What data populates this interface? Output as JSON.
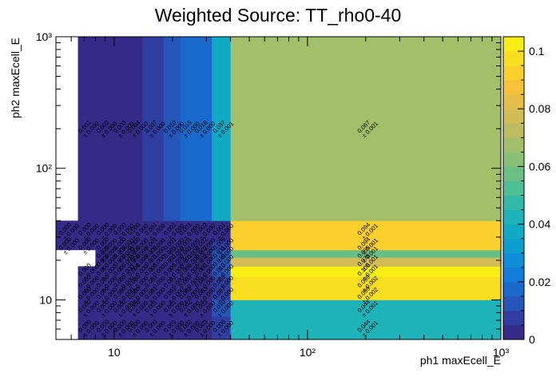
{
  "chart_data": {
    "type": "heatmap",
    "title": "Weighted Source: TT_rho0-40",
    "xlabel": "ph1 maxEcell_E",
    "ylabel": "ph2 maxEcell_E",
    "x_scale": "log",
    "y_scale": "log",
    "xlim": [
      5,
      1000
    ],
    "ylim": [
      5,
      1000
    ],
    "x_ticks": [
      {
        "value": 10,
        "label": "10"
      },
      {
        "value": 100,
        "label": "10²"
      },
      {
        "value": 1000,
        "label": "10³"
      }
    ],
    "y_ticks": [
      {
        "value": 10,
        "label": "10"
      },
      {
        "value": 100,
        "label": "10²"
      },
      {
        "value": 1000,
        "label": "10³"
      }
    ],
    "colorbar": {
      "min": 0,
      "max": 0.105,
      "ticks": [
        {
          "value": 0,
          "label": "0"
        },
        {
          "value": 0.02,
          "label": "0.02"
        },
        {
          "value": 0.04,
          "label": "0.04"
        },
        {
          "value": 0.06,
          "label": "0.06"
        },
        {
          "value": 0.08,
          "label": "0.08"
        },
        {
          "value": 0.1,
          "label": "0.1"
        }
      ]
    },
    "x_edges": [
      5,
      6.5,
      8,
      10,
      12,
      14,
      18,
      22,
      26,
      32,
      40,
      1000
    ],
    "y_edges": [
      5,
      7.5,
      10,
      12,
      15,
      18,
      21,
      24,
      28,
      40,
      1000
    ],
    "cells": [
      {
        "x": 0,
        "y": 0,
        "v": null
      },
      {
        "x": 0,
        "y": 1,
        "v": null
      },
      {
        "x": 0,
        "y": 2,
        "v": null
      },
      {
        "x": 0,
        "y": 3,
        "v": null
      },
      {
        "x": 0,
        "y": 4,
        "v": null
      },
      {
        "x": 0,
        "y": 5,
        "v": null
      },
      {
        "x": 0,
        "y": 6,
        "v": null
      },
      {
        "x": 0,
        "y": 7,
        "v": 0.0,
        "label": "0.000",
        "err": "± 0.000"
      },
      {
        "x": 0,
        "y": 8,
        "v": 0.0,
        "label": "0.000",
        "err": "± 0.000"
      },
      {
        "x": 0,
        "y": 9,
        "v": null
      },
      {
        "x": 1,
        "y": 0,
        "v": 0.0,
        "label": "0.000",
        "err": "± 0.000"
      },
      {
        "x": 1,
        "y": 1,
        "v": 0.0,
        "label": "0.000",
        "err": "± 0.000"
      },
      {
        "x": 1,
        "y": 2,
        "v": 0.0,
        "label": "0.000",
        "err": "± 0.000"
      },
      {
        "x": 1,
        "y": 3,
        "v": 0.0,
        "label": "0.000",
        "err": "± 0.000"
      },
      {
        "x": 1,
        "y": 4,
        "v": 0.0,
        "label": "0.000",
        "err": "± 0.000"
      },
      {
        "x": 1,
        "y": 5,
        "v": null
      },
      {
        "x": 1,
        "y": 6,
        "v": null
      },
      {
        "x": 1,
        "y": 7,
        "v": 0.0,
        "label": "0.000",
        "err": "± 0.000"
      },
      {
        "x": 1,
        "y": 8,
        "v": 0.0,
        "label": "0.000",
        "err": "± 0.000"
      },
      {
        "x": 1,
        "y": 9,
        "v": 0.001,
        "label": "0.001",
        "err": "± 0.000"
      },
      {
        "x": 2,
        "y": 0,
        "v": 0.0,
        "label": "0.000",
        "err": "± 0.000"
      },
      {
        "x": 2,
        "y": 1,
        "v": 0.0,
        "label": "0.000",
        "err": "± 0.000"
      },
      {
        "x": 2,
        "y": 2,
        "v": 0.0,
        "label": "0.000",
        "err": "± 0.000"
      },
      {
        "x": 2,
        "y": 3,
        "v": 0.0,
        "label": "0.000",
        "err": "± 0.000"
      },
      {
        "x": 2,
        "y": 4,
        "v": 0.0,
        "label": "0.000",
        "err": "± 0.000"
      },
      {
        "x": 2,
        "y": 5,
        "v": 0.0,
        "label": "0.000",
        "err": "± 0.000"
      },
      {
        "x": 2,
        "y": 6,
        "v": 0.0,
        "label": "0.000",
        "err": "± 0.000"
      },
      {
        "x": 2,
        "y": 7,
        "v": 0.0,
        "label": "0.000",
        "err": "± 0.000"
      },
      {
        "x": 2,
        "y": 8,
        "v": 0.0,
        "label": "0.000",
        "err": "± 0.000"
      },
      {
        "x": 2,
        "y": 9,
        "v": 0.002,
        "label": "0.002",
        "err": "± 0.000"
      },
      {
        "x": 3,
        "y": 0,
        "v": 0.0,
        "label": "0.000",
        "err": "± 0.000"
      },
      {
        "x": 3,
        "y": 1,
        "v": 0.0,
        "label": "0.000",
        "err": "± 0.000"
      },
      {
        "x": 3,
        "y": 2,
        "v": 0.0,
        "label": "0.000",
        "err": "± 0.000"
      },
      {
        "x": 3,
        "y": 3,
        "v": 0.0,
        "label": "0.000",
        "err": "± 0.000"
      },
      {
        "x": 3,
        "y": 4,
        "v": 0.0,
        "label": "0.000",
        "err": "± 0.000"
      },
      {
        "x": 3,
        "y": 5,
        "v": 0.0,
        "label": "0.000",
        "err": "± 0.000"
      },
      {
        "x": 3,
        "y": 6,
        "v": 0.0,
        "label": "0.000",
        "err": "± 0.000"
      },
      {
        "x": 3,
        "y": 7,
        "v": 0.0,
        "label": "0.000",
        "err": "± 0.000"
      },
      {
        "x": 3,
        "y": 8,
        "v": 0.0,
        "label": "0.000",
        "err": "± 0.000"
      },
      {
        "x": 3,
        "y": 9,
        "v": 0.003,
        "label": "0.003",
        "err": "± 0.000"
      },
      {
        "x": 4,
        "y": 0,
        "v": 0.0,
        "label": "0.000",
        "err": "± 0.000"
      },
      {
        "x": 4,
        "y": 1,
        "v": 0.0,
        "label": "0.000",
        "err": "± 0.000"
      },
      {
        "x": 4,
        "y": 2,
        "v": 0.0,
        "label": "0.000",
        "err": "± 0.000"
      },
      {
        "x": 4,
        "y": 3,
        "v": 0.0,
        "label": "0.000",
        "err": "± 0.000"
      },
      {
        "x": 4,
        "y": 4,
        "v": 0.001,
        "label": "0.001",
        "err": "± 0.000"
      },
      {
        "x": 4,
        "y": 5,
        "v": 0.0,
        "label": "0.000",
        "err": "± 0.000"
      },
      {
        "x": 4,
        "y": 6,
        "v": 0.0,
        "label": "0.000",
        "err": "± 0.000"
      },
      {
        "x": 4,
        "y": 7,
        "v": 0.0,
        "label": "0.000",
        "err": "± 0.000"
      },
      {
        "x": 4,
        "y": 8,
        "v": 0.0,
        "label": "0.000",
        "err": "± 0.000"
      },
      {
        "x": 4,
        "y": 9,
        "v": 0.004,
        "label": "0.004",
        "err": "± 0.000"
      },
      {
        "x": 5,
        "y": 0,
        "v": 0.0,
        "label": "0.000",
        "err": "± 0.000"
      },
      {
        "x": 5,
        "y": 1,
        "v": 0.001,
        "label": "0.001",
        "err": "± 0.000"
      },
      {
        "x": 5,
        "y": 2,
        "v": 0.001,
        "label": "0.001",
        "err": "± 0.000"
      },
      {
        "x": 5,
        "y": 3,
        "v": 0.001,
        "label": "0.001",
        "err": "± 0.000"
      },
      {
        "x": 5,
        "y": 4,
        "v": 0.001,
        "label": "0.001",
        "err": "± 0.000"
      },
      {
        "x": 5,
        "y": 5,
        "v": 0.001,
        "label": "0.001",
        "err": "± 0.000"
      },
      {
        "x": 5,
        "y": 6,
        "v": 0.0,
        "label": "0.000",
        "err": "± 0.000"
      },
      {
        "x": 5,
        "y": 7,
        "v": 0.001,
        "label": "0.001",
        "err": "± 0.000"
      },
      {
        "x": 5,
        "y": 8,
        "v": 0.001,
        "label": "0.001",
        "err": "± 0.000"
      },
      {
        "x": 5,
        "y": 9,
        "v": 0.007,
        "label": "0.007",
        "err": "± 0.000"
      },
      {
        "x": 6,
        "y": 0,
        "v": 0.001,
        "label": "0.001",
        "err": "± 0.000"
      },
      {
        "x": 6,
        "y": 1,
        "v": 0.001,
        "label": "0.001",
        "err": "± 0.000"
      },
      {
        "x": 6,
        "y": 2,
        "v": 0.001,
        "label": "0.001",
        "err": "± 0.000"
      },
      {
        "x": 6,
        "y": 3,
        "v": 0.001,
        "label": "0.001",
        "err": "± 0.000"
      },
      {
        "x": 6,
        "y": 4,
        "v": 0.001,
        "label": "0.001",
        "err": "± 0.000"
      },
      {
        "x": 6,
        "y": 5,
        "v": 0.001,
        "label": "0.001",
        "err": "± 0.000"
      },
      {
        "x": 6,
        "y": 6,
        "v": 0.001,
        "label": "0.001",
        "err": "± 0.000"
      },
      {
        "x": 6,
        "y": 7,
        "v": 0.001,
        "label": "0.001",
        "err": "± 0.000"
      },
      {
        "x": 6,
        "y": 8,
        "v": 0.001,
        "label": "0.001",
        "err": "± 0.000"
      },
      {
        "x": 6,
        "y": 9,
        "v": 0.01,
        "label": "0.010",
        "err": "± 0.000"
      },
      {
        "x": 7,
        "y": 0,
        "v": 0.002,
        "label": "0.002",
        "err": "± 0.000"
      },
      {
        "x": 7,
        "y": 1,
        "v": 0.002,
        "label": "0.002",
        "err": "± 0.000"
      },
      {
        "x": 7,
        "y": 2,
        "v": 0.002,
        "label": "0.002",
        "err": "± 0.000"
      },
      {
        "x": 7,
        "y": 3,
        "v": 0.002,
        "label": "0.002",
        "err": "± 0.000"
      },
      {
        "x": 7,
        "y": 4,
        "v": 0.002,
        "label": "0.002",
        "err": "± 0.000"
      },
      {
        "x": 7,
        "y": 5,
        "v": 0.001,
        "label": "0.001",
        "err": "± 0.000"
      },
      {
        "x": 7,
        "y": 6,
        "v": 0.001,
        "label": "0.001",
        "err": "± 0.000"
      },
      {
        "x": 7,
        "y": 7,
        "v": 0.001,
        "label": "0.001",
        "err": "± 0.000"
      },
      {
        "x": 7,
        "y": 8,
        "v": 0.001,
        "label": "0.001",
        "err": "± 0.000"
      },
      {
        "x": 7,
        "y": 9,
        "v": 0.015,
        "label": "0.015",
        "err": "± 0.000"
      },
      {
        "x": 8,
        "y": 0,
        "v": 0.003,
        "label": "0.003",
        "err": "± 0.000"
      },
      {
        "x": 8,
        "y": 1,
        "v": 0.003,
        "label": "0.003",
        "err": "± 0.000"
      },
      {
        "x": 8,
        "y": 2,
        "v": 0.003,
        "label": "0.003",
        "err": "± 0.000"
      },
      {
        "x": 8,
        "y": 3,
        "v": 0.003,
        "label": "0.003",
        "err": "± 0.000"
      },
      {
        "x": 8,
        "y": 4,
        "v": 0.003,
        "label": "0.003",
        "err": "± 0.000"
      },
      {
        "x": 8,
        "y": 5,
        "v": 0.002,
        "label": "0.002",
        "err": "± 0.000"
      },
      {
        "x": 8,
        "y": 6,
        "v": 0.002,
        "label": "0.002",
        "err": "± 0.000"
      },
      {
        "x": 8,
        "y": 7,
        "v": 0.002,
        "label": "0.002",
        "err": "± 0.000"
      },
      {
        "x": 8,
        "y": 8,
        "v": 0.002,
        "label": "0.002",
        "err": "± 0.000"
      },
      {
        "x": 8,
        "y": 9,
        "v": 0.018,
        "label": "0.018",
        "err": "± 0.000"
      },
      {
        "x": 9,
        "y": 0,
        "v": 0.006,
        "label": "0.006",
        "err": "± 0.000"
      },
      {
        "x": 9,
        "y": 1,
        "v": 0.01,
        "label": "0.010",
        "err": "± 0.000"
      },
      {
        "x": 9,
        "y": 2,
        "v": 0.007,
        "label": "0.007",
        "err": "± 0.000"
      },
      {
        "x": 9,
        "y": 3,
        "v": 0.006,
        "label": "0.006",
        "err": "± 0.000"
      },
      {
        "x": 9,
        "y": 4,
        "v": 0.01,
        "label": "0.010",
        "err": "± 0.000"
      },
      {
        "x": 9,
        "y": 5,
        "v": 0.01,
        "label": "0.010",
        "err": "± 0.000"
      },
      {
        "x": 9,
        "y": 6,
        "v": 0.011,
        "label": "0.011",
        "err": "± 0.000"
      },
      {
        "x": 9,
        "y": 7,
        "v": 0.009,
        "label": "0.009",
        "err": "± 0.000"
      },
      {
        "x": 9,
        "y": 8,
        "v": 0.001,
        "label": "0.001",
        "err": "± 0.000"
      },
      {
        "x": 9,
        "y": 9,
        "v": 0.037,
        "label": "0.037",
        "err": "± 0.001"
      },
      {
        "x": 10,
        "y": 0,
        "v": 0.044,
        "label": "0.044",
        "err": "± 0.001"
      },
      {
        "x": 10,
        "y": 1,
        "v": 0.044,
        "label": "0.044",
        "err": "± 0.001"
      },
      {
        "x": 10,
        "y": 2,
        "v": 0.099,
        "label": "0.099",
        "err": "± 0.002"
      },
      {
        "x": 10,
        "y": 3,
        "v": 0.099,
        "label": "0.099",
        "err": "± 0.002"
      },
      {
        "x": 10,
        "y": 4,
        "v": 0.106,
        "label": "0.106",
        "err": "± 0.001"
      },
      {
        "x": 10,
        "y": 5,
        "v": 0.078,
        "label": "0.078",
        "err": "± 0.001"
      },
      {
        "x": 10,
        "y": 6,
        "v": 0.056,
        "label": "0.056",
        "err": "± 0.001"
      },
      {
        "x": 10,
        "y": 7,
        "v": 0.094,
        "label": "0.094",
        "err": "± 0.001"
      },
      {
        "x": 10,
        "y": 8,
        "v": 0.094,
        "label": "0.094",
        "err": "± 0.001"
      },
      {
        "x": 10,
        "y": 9,
        "v": 0.067,
        "label": "0.067",
        "err": "± 0.001"
      }
    ],
    "palette": [
      "#352a87",
      "#2f3ea0",
      "#2555b8",
      "#1a69cc",
      "#127cd9",
      "#0e8ed6",
      "#0d9ed0",
      "#10aac7",
      "#1db3b9",
      "#32baa8",
      "#4ebe96",
      "#6bbf84",
      "#88c076",
      "#a4bf6a",
      "#bcbd60",
      "#d2bc55",
      "#e6bd49",
      "#f6c23a",
      "#fbcf2c",
      "#f9de1f",
      "#f9ee14"
    ]
  }
}
